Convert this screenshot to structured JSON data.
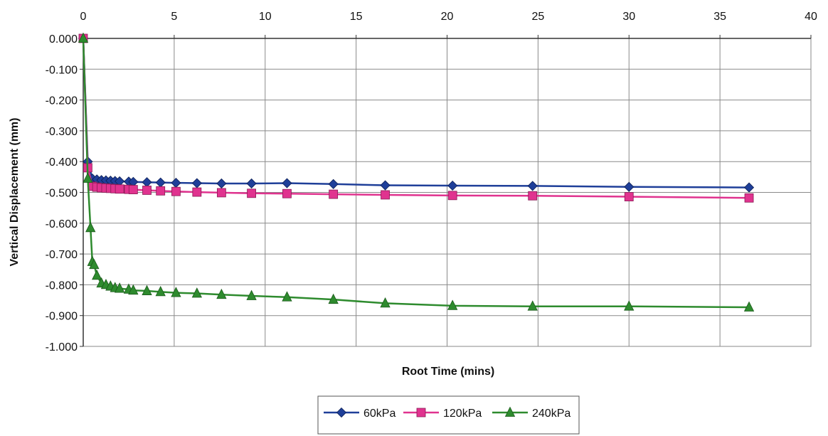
{
  "chart_data": {
    "type": "line",
    "title": "",
    "xlabel": "Root Time (mins)",
    "ylabel": "Vertical Displacement (mm)",
    "xlim": [
      0,
      40
    ],
    "ylim": [
      -1.0,
      0.0
    ],
    "x_ticks": [
      0,
      5,
      10,
      15,
      20,
      25,
      30,
      35,
      40
    ],
    "x_tick_labels": [
      "0",
      "5",
      "10",
      "15",
      "20",
      "25",
      "30",
      "35",
      "40"
    ],
    "y_ticks": [
      0.0,
      -0.1,
      -0.2,
      -0.3,
      -0.4,
      -0.5,
      -0.6,
      -0.7,
      -0.8,
      -0.9,
      -1.0
    ],
    "y_tick_labels": [
      "0.000",
      "-0.100",
      "-0.200",
      "-0.300",
      "-0.400",
      "-0.500",
      "-0.600",
      "-0.700",
      "-0.800",
      "-0.900",
      "-1.000"
    ],
    "x_axis_position": "top",
    "grid": true,
    "legend_position": "bottom-center",
    "series": [
      {
        "name": "60kPa",
        "color": "#1f3f99",
        "marker": "diamond",
        "x": [
          0,
          0.25,
          0.5,
          0.75,
          1.0,
          1.25,
          1.5,
          1.75,
          2.0,
          2.5,
          2.75,
          3.5,
          4.25,
          5.1,
          6.25,
          7.6,
          9.25,
          11.2,
          13.75,
          16.6,
          20.3,
          24.7,
          30.0,
          36.6
        ],
        "y": [
          0.0,
          -0.4,
          -0.455,
          -0.458,
          -0.46,
          -0.461,
          -0.462,
          -0.463,
          -0.464,
          -0.465,
          -0.466,
          -0.467,
          -0.468,
          -0.469,
          -0.47,
          -0.471,
          -0.471,
          -0.47,
          -0.473,
          -0.477,
          -0.478,
          -0.479,
          -0.482,
          -0.484
        ]
      },
      {
        "name": "120kPa",
        "color": "#e0338f",
        "marker": "square",
        "x": [
          0,
          0.25,
          0.5,
          0.75,
          1.0,
          1.25,
          1.5,
          1.75,
          2.0,
          2.5,
          2.75,
          3.5,
          4.25,
          5.1,
          6.25,
          7.6,
          9.25,
          11.2,
          13.75,
          16.6,
          20.3,
          24.7,
          30.0,
          36.6
        ],
        "y": [
          0.0,
          -0.42,
          -0.48,
          -0.483,
          -0.485,
          -0.486,
          -0.487,
          -0.488,
          -0.489,
          -0.49,
          -0.491,
          -0.493,
          -0.495,
          -0.497,
          -0.499,
          -0.501,
          -0.503,
          -0.504,
          -0.506,
          -0.508,
          -0.51,
          -0.511,
          -0.514,
          -0.518
        ]
      },
      {
        "name": "240kPa",
        "color": "#2e8b2e",
        "marker": "triangle",
        "x": [
          0,
          0.25,
          0.4,
          0.5,
          0.6,
          0.75,
          1.0,
          1.25,
          1.5,
          1.75,
          2.0,
          2.5,
          2.75,
          3.5,
          4.25,
          5.1,
          6.25,
          7.6,
          9.25,
          11.2,
          13.75,
          16.6,
          20.3,
          24.7,
          30.0,
          36.6
        ],
        "y": [
          0.0,
          -0.455,
          -0.615,
          -0.725,
          -0.735,
          -0.77,
          -0.795,
          -0.8,
          -0.805,
          -0.81,
          -0.812,
          -0.815,
          -0.818,
          -0.82,
          -0.823,
          -0.826,
          -0.828,
          -0.832,
          -0.836,
          -0.84,
          -0.848,
          -0.86,
          -0.868,
          -0.87,
          -0.87,
          -0.873
        ]
      }
    ]
  }
}
